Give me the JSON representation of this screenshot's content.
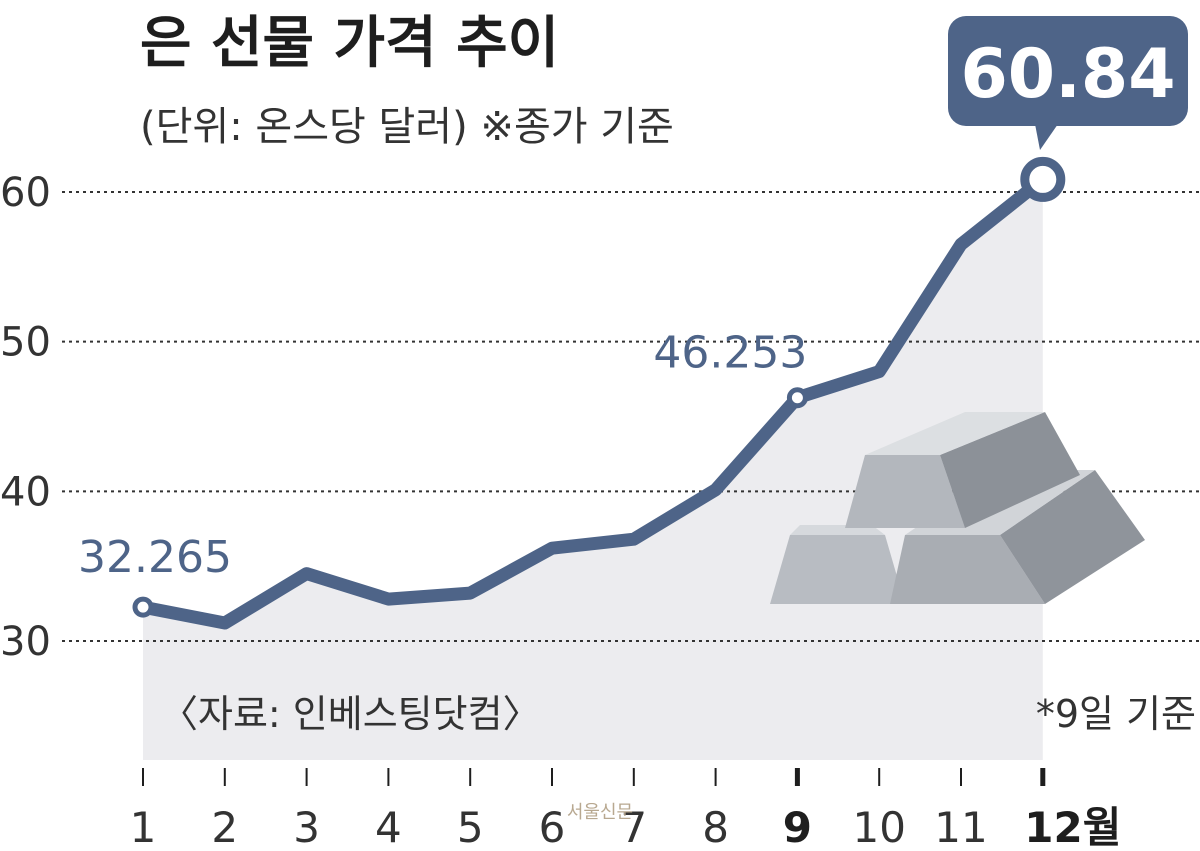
{
  "header": {
    "title": "은 선물 가격 추이",
    "subtitle": "(단위: 온스당 달러)  ※종가 기준"
  },
  "source": "〈자료: 인베스팅닷컴〉",
  "footnote": "*9일 기준",
  "watermark": "서울신문",
  "colors": {
    "line": "#4e6488",
    "area": "#ececef",
    "callout": "#4e6488",
    "grid": "#333333"
  },
  "chart_data": {
    "type": "line",
    "title": "은 선물 가격 추이",
    "subtitle": "(단위: 온스당 달러)  ※종가 기준",
    "categories": [
      "1",
      "2",
      "3",
      "4",
      "5",
      "6",
      "7",
      "8",
      "9",
      "10",
      "11",
      "12월"
    ],
    "values": [
      32.265,
      31.2,
      34.5,
      32.8,
      33.2,
      36.2,
      36.8,
      40.1,
      46.253,
      48.0,
      56.5,
      60.84
    ],
    "yticks": [
      30,
      40,
      50,
      60
    ],
    "ylim": [
      25,
      66
    ],
    "grid": "horizontal-dotted",
    "labeled_points": [
      {
        "index": 0,
        "label": "32.265"
      },
      {
        "index": 8,
        "label": "46.253"
      },
      {
        "index": 11,
        "label": "60.84"
      }
    ]
  }
}
